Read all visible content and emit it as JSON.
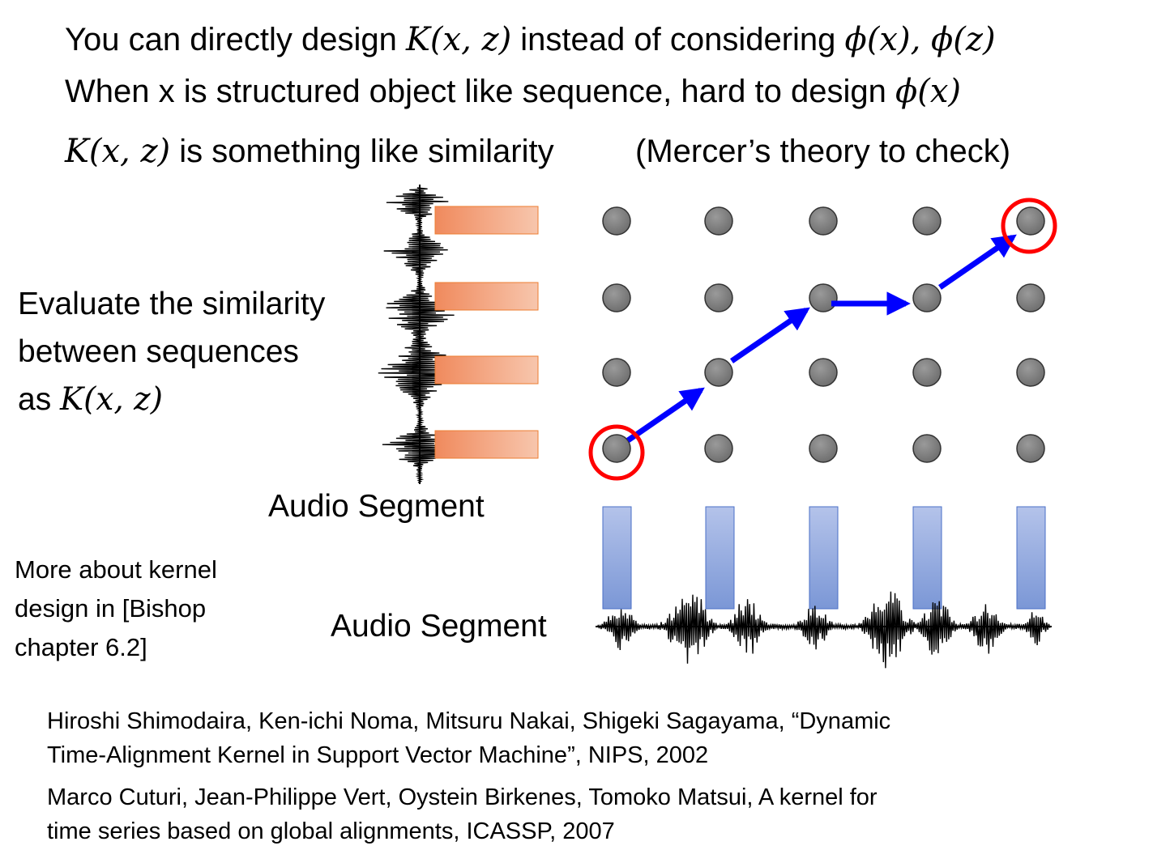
{
  "header": {
    "line1_pre": "You can directly design ",
    "line1_k": "K(x, z)",
    "line1_mid": " instead of considering ",
    "line1_phi": "ϕ(x), ϕ(z)",
    "line2_pre": "When x is structured object like sequence,  hard to design ",
    "line2_phi": "ϕ(x)",
    "line3_k": "K(x, z)",
    "line3_mid": " is something like similarity",
    "line3_note": "(Mercer’s theory to check)"
  },
  "left_text": {
    "line1": "Evaluate the similarity",
    "line2": "between sequences",
    "line3_pre": "as ",
    "line3_k": "K(x, z)"
  },
  "labels": {
    "audio_segment_vertical": "Audio Segment",
    "audio_segment_horizontal": "Audio Segment"
  },
  "note": {
    "line1": "More about kernel",
    "line2": "design in [Bishop",
    "line3": "chapter 6.2]"
  },
  "references": [
    {
      "line1": "Hiroshi Shimodaira, Ken-ichi Noma, Mitsuru Nakai, Shigeki Sagayama, “Dynamic",
      "line2": "Time-Alignment Kernel in Support Vector Machine”, NIPS, 2002"
    },
    {
      "line1": "Marco Cuturi, Jean-Philippe Vert, Oystein Birkenes, Tomoko Matsui, A kernel for",
      "line2": "time series based on global alignments, ICASSP, 2007"
    }
  ],
  "grid": {
    "columns": 5,
    "rows": 4,
    "alignment_path": [
      [
        0,
        0
      ],
      [
        1,
        1
      ],
      [
        2,
        2
      ],
      [
        3,
        2
      ],
      [
        4,
        3
      ]
    ],
    "highlighted_nodes": [
      [
        0,
        0
      ],
      [
        4,
        3
      ]
    ]
  },
  "colors": {
    "node_fill": "#7f7f7f",
    "arrow": "#0000ff",
    "highlight_ring": "#ff0000",
    "segment_box_orange": "#f4a582",
    "segment_box_blue": "#8fa6dc"
  }
}
